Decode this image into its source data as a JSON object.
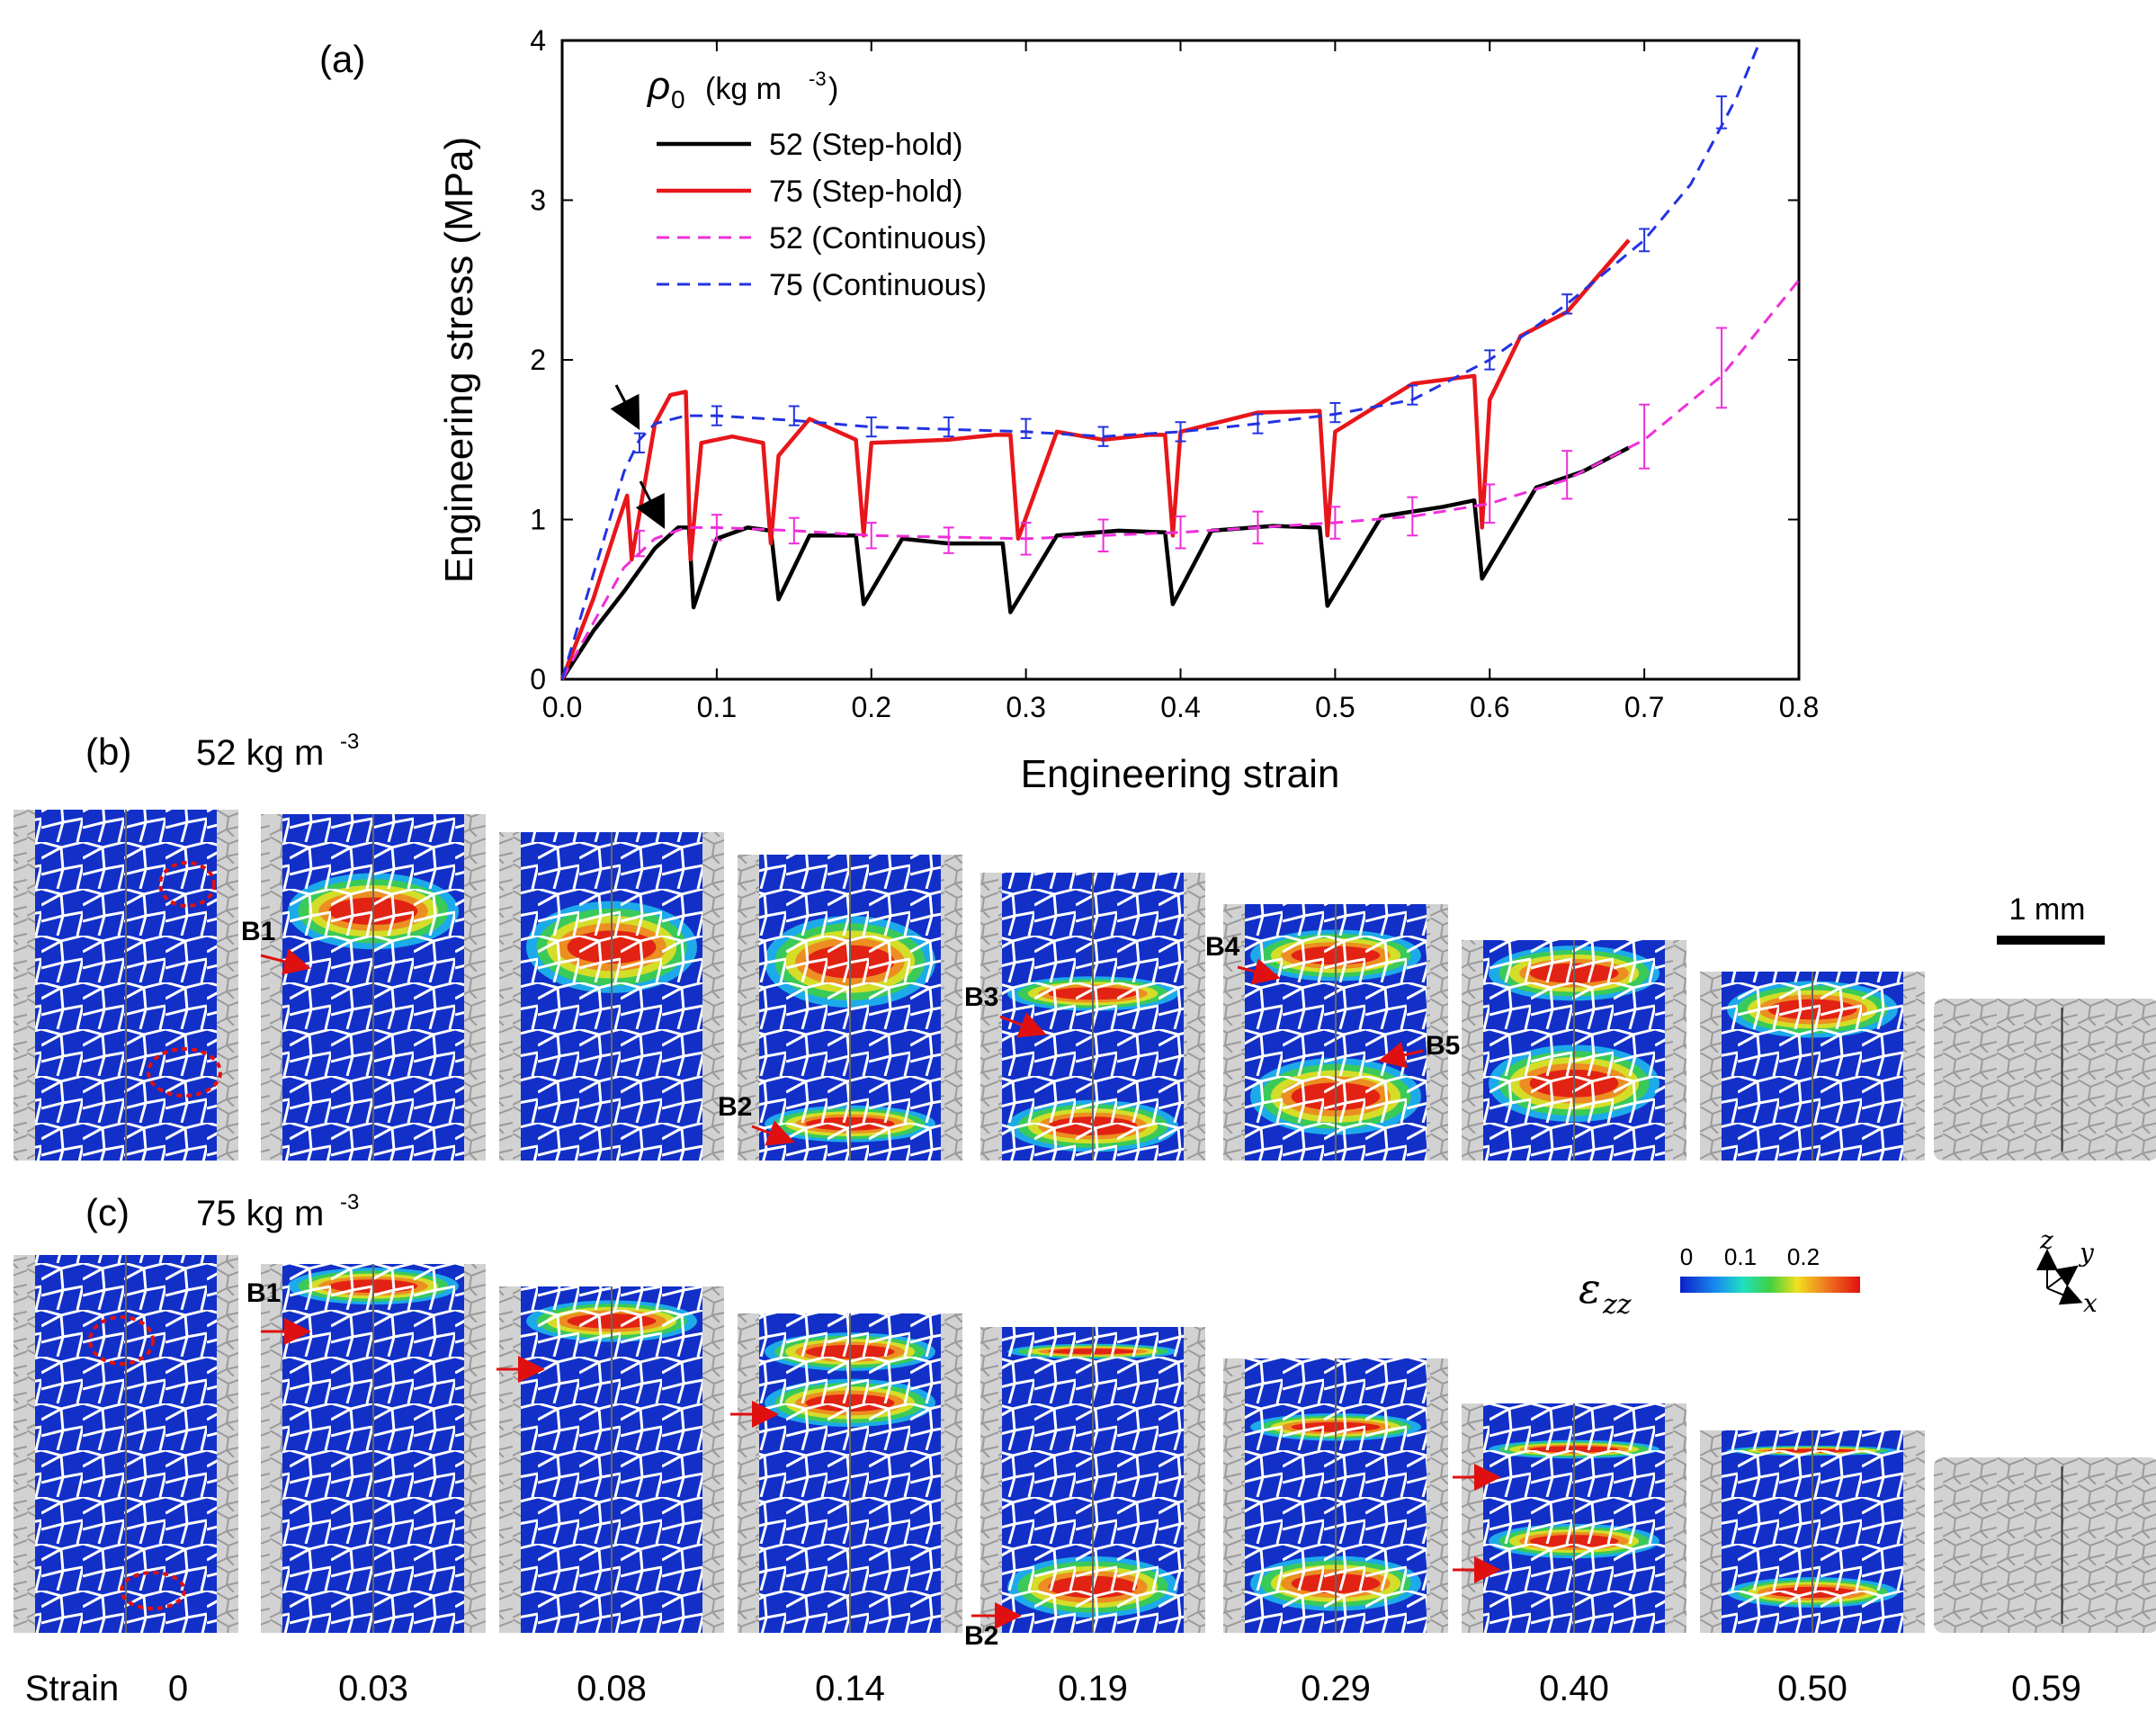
{
  "panels": {
    "a": {
      "label": "(a)"
    },
    "b": {
      "label": "(b)",
      "density_text": "52 kg m",
      "density_sup": "-3"
    },
    "c": {
      "label": "(c)",
      "density_text": "75 kg m",
      "density_sup": "-3"
    }
  },
  "chart_data": {
    "type": "line",
    "title": "",
    "xlabel": "Engineering strain",
    "ylabel": "Engineering stress (MPa)",
    "xlim": [
      0,
      0.8
    ],
    "ylim": [
      0,
      4
    ],
    "xticks": [
      "0.0",
      "0.1",
      "0.2",
      "0.3",
      "0.4",
      "0.5",
      "0.6",
      "0.7",
      "0.8"
    ],
    "yticks": [
      "0",
      "1",
      "2",
      "3",
      "4"
    ],
    "legend": {
      "title_symbol": "ρ",
      "title_sub": "0",
      "title_units": "(kg m",
      "title_units_sup": "-3",
      "title_units_close": ")",
      "entries": [
        "52 (Step-hold)",
        "75 (Step-hold)",
        "52 (Continuous)",
        "75 (Continuous)"
      ]
    },
    "series": [
      {
        "name": "52 (Step-hold)",
        "color": "#000000",
        "dash": false,
        "x": [
          0,
          0.02,
          0.04,
          0.06,
          0.075,
          0.082,
          0.085,
          0.1,
          0.12,
          0.135,
          0.14,
          0.16,
          0.19,
          0.195,
          0.22,
          0.25,
          0.285,
          0.29,
          0.32,
          0.36,
          0.39,
          0.395,
          0.42,
          0.46,
          0.49,
          0.495,
          0.53,
          0.57,
          0.59,
          0.595,
          0.63,
          0.66,
          0.69
        ],
        "y": [
          0,
          0.3,
          0.55,
          0.82,
          0.95,
          0.95,
          0.45,
          0.88,
          0.95,
          0.93,
          0.5,
          0.9,
          0.9,
          0.47,
          0.88,
          0.85,
          0.85,
          0.42,
          0.9,
          0.93,
          0.92,
          0.47,
          0.93,
          0.96,
          0.95,
          0.46,
          1.02,
          1.08,
          1.12,
          0.63,
          1.2,
          1.3,
          1.45
        ]
      },
      {
        "name": "75 (Step-hold)",
        "color": "#e8161a",
        "dash": false,
        "x": [
          0,
          0.02,
          0.035,
          0.042,
          0.045,
          0.06,
          0.07,
          0.08,
          0.083,
          0.09,
          0.11,
          0.13,
          0.135,
          0.14,
          0.16,
          0.19,
          0.195,
          0.2,
          0.25,
          0.28,
          0.29,
          0.295,
          0.32,
          0.35,
          0.38,
          0.39,
          0.395,
          0.4,
          0.45,
          0.49,
          0.495,
          0.5,
          0.55,
          0.59,
          0.595,
          0.6,
          0.62,
          0.65,
          0.69
        ],
        "y": [
          0,
          0.5,
          0.95,
          1.15,
          0.75,
          1.6,
          1.78,
          1.8,
          0.75,
          1.48,
          1.52,
          1.48,
          0.85,
          1.4,
          1.63,
          1.5,
          0.9,
          1.48,
          1.5,
          1.53,
          1.53,
          0.88,
          1.55,
          1.5,
          1.53,
          1.53,
          0.9,
          1.55,
          1.67,
          1.68,
          0.9,
          1.55,
          1.85,
          1.9,
          0.95,
          1.75,
          2.15,
          2.3,
          2.75
        ]
      },
      {
        "name": "52 (Continuous)",
        "color": "#ef2fd9",
        "dash": true,
        "x": [
          0,
          0.02,
          0.04,
          0.06,
          0.08,
          0.1,
          0.15,
          0.2,
          0.3,
          0.4,
          0.5,
          0.55,
          0.6,
          0.65,
          0.7,
          0.75,
          0.8
        ],
        "y": [
          0,
          0.35,
          0.7,
          0.88,
          0.95,
          0.95,
          0.93,
          0.9,
          0.88,
          0.92,
          0.98,
          1.02,
          1.1,
          1.25,
          1.5,
          1.9,
          2.5
        ]
      },
      {
        "name": "75 (Continuous)",
        "color": "#2233e0",
        "dash": true,
        "x": [
          0,
          0.02,
          0.04,
          0.05,
          0.06,
          0.08,
          0.1,
          0.15,
          0.2,
          0.3,
          0.35,
          0.4,
          0.45,
          0.5,
          0.55,
          0.6,
          0.65,
          0.7,
          0.73,
          0.76,
          0.775
        ],
        "y": [
          0,
          0.65,
          1.3,
          1.5,
          1.6,
          1.65,
          1.65,
          1.62,
          1.58,
          1.55,
          1.52,
          1.55,
          1.6,
          1.66,
          1.75,
          2.0,
          2.35,
          2.75,
          3.1,
          3.65,
          4.0
        ]
      }
    ],
    "error_bars": [
      {
        "series": "52 (Continuous)",
        "x": [
          0.05,
          0.1,
          0.15,
          0.2,
          0.25,
          0.3,
          0.35,
          0.4,
          0.45,
          0.5,
          0.55,
          0.6,
          0.65,
          0.7,
          0.75
        ],
        "y": [
          0.85,
          0.95,
          0.93,
          0.9,
          0.87,
          0.88,
          0.9,
          0.92,
          0.95,
          0.98,
          1.02,
          1.1,
          1.28,
          1.52,
          1.95
        ],
        "err": [
          0.08,
          0.08,
          0.08,
          0.08,
          0.08,
          0.1,
          0.1,
          0.1,
          0.1,
          0.1,
          0.12,
          0.12,
          0.15,
          0.2,
          0.25
        ]
      },
      {
        "series": "75 (Continuous)",
        "x": [
          0.05,
          0.1,
          0.15,
          0.2,
          0.25,
          0.3,
          0.35,
          0.4,
          0.45,
          0.5,
          0.55,
          0.6,
          0.65,
          0.7,
          0.75
        ],
        "y": [
          1.48,
          1.65,
          1.65,
          1.58,
          1.58,
          1.57,
          1.52,
          1.55,
          1.6,
          1.67,
          1.78,
          2.0,
          2.35,
          2.75,
          3.55
        ],
        "err": [
          0.06,
          0.06,
          0.06,
          0.06,
          0.06,
          0.06,
          0.06,
          0.06,
          0.06,
          0.06,
          0.06,
          0.06,
          0.06,
          0.07,
          0.1
        ]
      }
    ],
    "annotations": [
      {
        "type": "arrow",
        "target_x": 0.05,
        "target_y": 1.6
      },
      {
        "type": "arrow",
        "target_x": 0.075,
        "target_y": 0.95
      }
    ]
  },
  "ct_panels": {
    "strain_label": "Strain",
    "strains": [
      "0",
      "0.03",
      "0.08",
      "0.14",
      "0.19",
      "0.29",
      "0.40",
      "0.50",
      "0.59"
    ],
    "scale_bar_label": "1 mm",
    "colorbar": {
      "symbol": "ε",
      "sub": "zz",
      "ticks": [
        "0",
        "0.1",
        "0.2"
      ],
      "colors": [
        "#0a20c8",
        "#1a8cf0",
        "#20e0c0",
        "#40d040",
        "#f0e020",
        "#f08020",
        "#e01010"
      ]
    },
    "axes_triad": {
      "z": "z",
      "y": "y",
      "x": "x"
    },
    "labels_52": [
      "B1",
      "B2",
      "B3",
      "B4",
      "B5"
    ],
    "labels_75": [
      "B1",
      "B2"
    ],
    "grey_color": "#c8c8c8",
    "base_color": "#1230c8"
  }
}
